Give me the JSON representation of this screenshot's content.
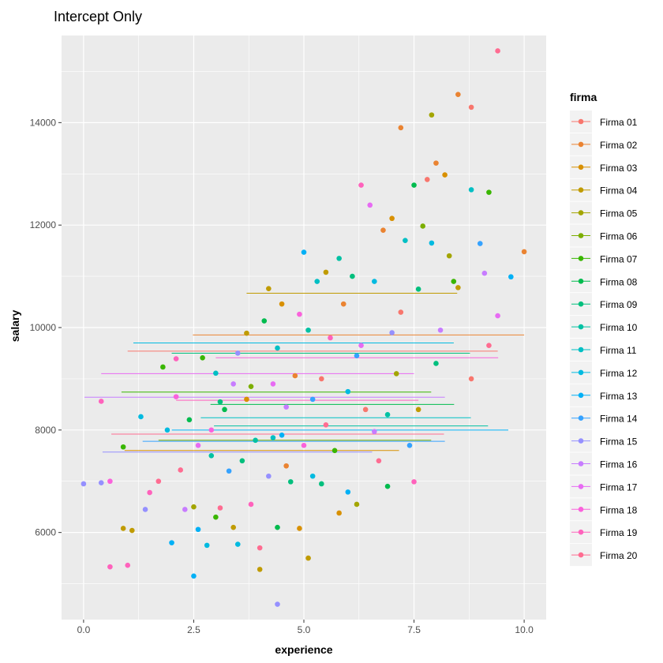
{
  "chart_data": {
    "type": "scatter",
    "title": "Intercept Only",
    "xlabel": "experience",
    "ylabel": "salary",
    "xlim": [
      -0.5,
      10.5
    ],
    "ylim": [
      4300,
      15700
    ],
    "xticks": [
      0,
      2.5,
      5,
      7.5,
      10
    ],
    "xtick_labels": [
      "0.0",
      "2.5",
      "5.0",
      "7.5",
      "10.0"
    ],
    "yticks": [
      6000,
      8000,
      10000,
      12000,
      14000
    ],
    "ytick_labels": [
      "6000",
      "8000",
      "10000",
      "12000",
      "14000"
    ],
    "grid": true,
    "legend": {
      "title": "firma",
      "placement": "right",
      "entries": [
        "Firma 01",
        "Firma 02",
        "Firma 03",
        "Firma 04",
        "Firma 05",
        "Firma 06",
        "Firma 07",
        "Firma 08",
        "Firma 09",
        "Firma 10",
        "Firma 11",
        "Firma 12",
        "Firma 13",
        "Firma 14",
        "Firma 15",
        "Firma 16",
        "Firma 17",
        "Firma 18",
        "Firma 19",
        "Firma 20"
      ]
    },
    "colors": [
      "#F8766D",
      "#EA8331",
      "#D89000",
      "#C09B00",
      "#A3A500",
      "#7CAE00",
      "#39B600",
      "#00BB4E",
      "#00BF7D",
      "#00C1A3",
      "#00BFC4",
      "#00BAE0",
      "#00B0F6",
      "#35A2FF",
      "#9590FF",
      "#C77CFF",
      "#E76BF3",
      "#FA62DB",
      "#FF62BC",
      "#FF6C91"
    ],
    "intercept_lines": [
      {
        "firma": 1,
        "y": 9540,
        "x": [
          1.0,
          9.4
        ]
      },
      {
        "firma": 2,
        "y": 9855,
        "x": [
          2.48,
          10.0
        ]
      },
      {
        "firma": 3,
        "y": 7600,
        "x": [
          0.93,
          7.16
        ]
      },
      {
        "firma": 4,
        "y": 10670,
        "x": [
          3.7,
          8.48
        ]
      },
      {
        "firma": 5,
        "y": 9700,
        "x": [
          2.64,
          8.4
        ]
      },
      {
        "firma": 6,
        "y": 7800,
        "x": [
          1.7,
          7.89
        ]
      },
      {
        "firma": 7,
        "y": 8740,
        "x": [
          0.86,
          7.89
        ]
      },
      {
        "firma": 8,
        "y": 8500,
        "x": [
          2.88,
          8.41
        ]
      },
      {
        "firma": 9,
        "y": 9500,
        "x": [
          2.0,
          8.77
        ]
      },
      {
        "firma": 10,
        "y": 8080,
        "x": [
          2.96,
          9.18
        ]
      },
      {
        "firma": 11,
        "y": 8240,
        "x": [
          2.66,
          8.79
        ]
      },
      {
        "firma": 12,
        "y": 9700,
        "x": [
          1.13,
          8.4
        ]
      },
      {
        "firma": 13,
        "y": 8000,
        "x": [
          2.0,
          9.64
        ]
      },
      {
        "firma": 14,
        "y": 7780,
        "x": [
          1.34,
          8.2
        ]
      },
      {
        "firma": 15,
        "y": 7570,
        "x": [
          0.43,
          6.55
        ]
      },
      {
        "firma": 16,
        "y": 8640,
        "x": [
          0.02,
          8.2
        ]
      },
      {
        "firma": 17,
        "y": 9100,
        "x": [
          0.4,
          7.5
        ]
      },
      {
        "firma": 18,
        "y": 9410,
        "x": [
          3.0,
          9.41
        ]
      },
      {
        "firma": 19,
        "y": 8580,
        "x": [
          2.1,
          7.6
        ]
      },
      {
        "firma": 20,
        "y": 7920,
        "x": [
          0.63,
          8.18
        ]
      }
    ],
    "points": [
      [
        9.4,
        15400,
        20
      ],
      [
        8.5,
        14550,
        2
      ],
      [
        8.8,
        14300,
        1
      ],
      [
        7.9,
        14150,
        5
      ],
      [
        7.2,
        13900,
        2
      ],
      [
        4.4,
        4600,
        15
      ],
      [
        2.5,
        5150,
        13
      ],
      [
        0.0,
        6950,
        15
      ],
      [
        0.6,
        5330,
        19
      ],
      [
        1.0,
        5360,
        19
      ],
      [
        0.9,
        6080,
        4
      ],
      [
        1.1,
        6040,
        4
      ],
      [
        0.4,
        6970,
        15
      ],
      [
        0.6,
        7000,
        18
      ],
      [
        0.4,
        8560,
        19
      ],
      [
        0.9,
        7670,
        7
      ],
      [
        1.3,
        8260,
        12
      ],
      [
        1.4,
        6450,
        15
      ],
      [
        1.5,
        6780,
        19
      ],
      [
        1.7,
        7000,
        20
      ],
      [
        1.8,
        9230,
        7
      ],
      [
        1.9,
        8000,
        12
      ],
      [
        2.0,
        5800,
        13
      ],
      [
        2.1,
        8650,
        18
      ],
      [
        2.1,
        9390,
        19
      ],
      [
        2.2,
        7220,
        20
      ],
      [
        2.3,
        6450,
        16
      ],
      [
        2.4,
        8200,
        8
      ],
      [
        2.5,
        6500,
        5
      ],
      [
        2.6,
        7700,
        17
      ],
      [
        2.6,
        6060,
        13
      ],
      [
        2.7,
        9410,
        7
      ],
      [
        2.8,
        5750,
        12
      ],
      [
        2.9,
        8000,
        18
      ],
      [
        3.0,
        6300,
        7
      ],
      [
        3.0,
        9110,
        11
      ],
      [
        3.1,
        6480,
        20
      ],
      [
        3.2,
        8400,
        8
      ],
      [
        3.3,
        7200,
        14
      ],
      [
        3.4,
        6100,
        4
      ],
      [
        3.4,
        8900,
        16
      ],
      [
        3.5,
        5770,
        12
      ],
      [
        3.6,
        7400,
        9
      ],
      [
        3.7,
        8600,
        3
      ],
      [
        3.7,
        9890,
        4
      ],
      [
        3.8,
        6550,
        19
      ],
      [
        3.9,
        7800,
        10
      ],
      [
        4.0,
        5700,
        20
      ],
      [
        4.0,
        5280,
        4
      ],
      [
        4.1,
        10130,
        8
      ],
      [
        4.2,
        7100,
        15
      ],
      [
        4.2,
        10760,
        4
      ],
      [
        4.3,
        8900,
        17
      ],
      [
        4.4,
        6100,
        8
      ],
      [
        4.4,
        9600,
        11
      ],
      [
        4.5,
        7900,
        13
      ],
      [
        4.5,
        10460,
        3
      ],
      [
        4.6,
        8450,
        16
      ],
      [
        4.7,
        6990,
        9
      ],
      [
        4.8,
        9060,
        2
      ],
      [
        4.9,
        6080,
        3
      ],
      [
        5.0,
        11470,
        13
      ],
      [
        5.0,
        7700,
        18
      ],
      [
        5.1,
        5500,
        4
      ],
      [
        5.1,
        9950,
        10
      ],
      [
        5.2,
        8600,
        14
      ],
      [
        5.3,
        10900,
        11
      ],
      [
        5.4,
        6950,
        9
      ],
      [
        5.5,
        8100,
        20
      ],
      [
        5.5,
        11080,
        4
      ],
      [
        5.6,
        9800,
        19
      ],
      [
        5.7,
        7600,
        7
      ],
      [
        5.8,
        6380,
        3
      ],
      [
        5.9,
        10460,
        2
      ],
      [
        6.0,
        8750,
        12
      ],
      [
        6.0,
        6790,
        13
      ],
      [
        6.1,
        11000,
        9
      ],
      [
        6.2,
        6550,
        5
      ],
      [
        6.3,
        12780,
        19
      ],
      [
        6.3,
        9650,
        17
      ],
      [
        6.4,
        8400,
        1
      ],
      [
        6.5,
        12390,
        17
      ],
      [
        6.6,
        10900,
        12
      ],
      [
        6.7,
        7400,
        20
      ],
      [
        6.8,
        11900,
        2
      ],
      [
        6.9,
        8300,
        10
      ],
      [
        6.9,
        6900,
        8
      ],
      [
        7.0,
        12130,
        3
      ],
      [
        7.1,
        9100,
        5
      ],
      [
        7.2,
        10300,
        1
      ],
      [
        7.3,
        11700,
        11
      ],
      [
        7.4,
        7700,
        14
      ],
      [
        7.5,
        12780,
        8
      ],
      [
        7.5,
        6990,
        19
      ],
      [
        7.6,
        8400,
        4
      ],
      [
        7.7,
        11980,
        6
      ],
      [
        7.8,
        12890,
        1
      ],
      [
        7.9,
        11650,
        12
      ],
      [
        8.0,
        13210,
        2
      ],
      [
        8.0,
        9300,
        9
      ],
      [
        8.1,
        9950,
        16
      ],
      [
        8.2,
        12980,
        3
      ],
      [
        8.3,
        11400,
        5
      ],
      [
        8.4,
        10900,
        7
      ],
      [
        8.5,
        10780,
        4
      ],
      [
        8.8,
        12690,
        11
      ],
      [
        8.8,
        9000,
        1
      ],
      [
        9.0,
        11640,
        14
      ],
      [
        9.1,
        11060,
        16
      ],
      [
        9.2,
        9650,
        20
      ],
      [
        9.2,
        12640,
        7
      ],
      [
        9.4,
        10230,
        17
      ],
      [
        9.7,
        10990,
        13
      ],
      [
        10.0,
        11480,
        2
      ],
      [
        7.6,
        10750,
        9
      ],
      [
        5.8,
        11350,
        10
      ],
      [
        4.9,
        10260,
        18
      ],
      [
        3.5,
        9500,
        15
      ],
      [
        6.6,
        7970,
        16
      ],
      [
        5.4,
        9000,
        1
      ],
      [
        2.9,
        7500,
        10
      ],
      [
        3.8,
        8850,
        6
      ],
      [
        4.6,
        7300,
        2
      ],
      [
        6.2,
        9450,
        14
      ],
      [
        7.0,
        9900,
        15
      ],
      [
        5.2,
        7100,
        12
      ],
      [
        3.1,
        8550,
        9
      ],
      [
        4.3,
        7850,
        11
      ]
    ]
  }
}
